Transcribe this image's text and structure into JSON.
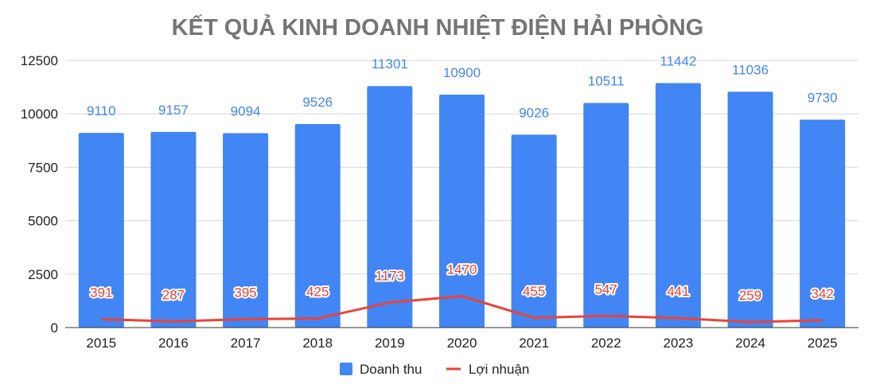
{
  "chart_data": {
    "type": "bar",
    "title": "KẾT QUẢ KINH DOANH NHIỆT ĐIỆN HẢI PHÒNG",
    "xlabel": "",
    "ylabel": "",
    "ylim": [
      0,
      12500
    ],
    "yticks": [
      "0",
      "2500",
      "5000",
      "7500",
      "10000",
      "12500"
    ],
    "ytick_values": [
      0,
      2500,
      5000,
      7500,
      10000,
      12500
    ],
    "grid": true,
    "legend_position": "bottom",
    "categories": [
      "2015",
      "2016",
      "2017",
      "2018",
      "2019",
      "2020",
      "2021",
      "2022",
      "2023",
      "2024",
      "2025"
    ],
    "series": [
      {
        "name": "Doanh thu",
        "type": "bar",
        "color": "#4285f4",
        "values": [
          9110,
          9157,
          9094,
          9526,
          11301,
          10900,
          9026,
          10511,
          11442,
          11036,
          9730
        ]
      },
      {
        "name": "Lợi nhuận",
        "type": "line",
        "color": "#ea4335",
        "values": [
          391,
          287,
          395,
          425,
          1173,
          1470,
          455,
          547,
          441,
          259,
          342
        ]
      }
    ]
  }
}
